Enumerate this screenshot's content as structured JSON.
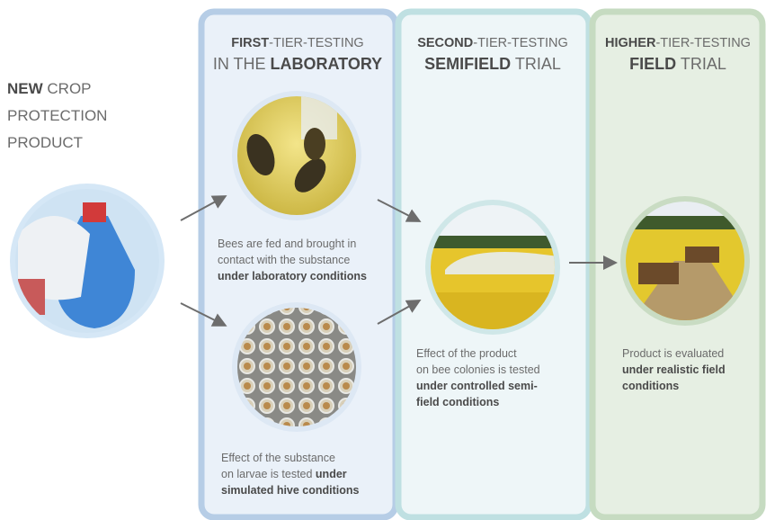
{
  "product": {
    "lines": [
      [
        {
          "text": "NEW",
          "bold": true
        },
        {
          "text": " CROP",
          "bold": false
        }
      ],
      [
        {
          "text": "PROTECTION",
          "bold": false
        }
      ],
      [
        {
          "text": "PRODUCT",
          "bold": false
        }
      ]
    ]
  },
  "stages": [
    {
      "heading": [
        [
          {
            "text": "FIRST",
            "bold": true
          },
          {
            "text": "-TIER-TESTING",
            "bold": false
          }
        ],
        [
          {
            "text": "IN THE ",
            "bold": false
          },
          {
            "text": "LABORATORY",
            "bold": true
          }
        ]
      ],
      "tests": [
        {
          "description": [
            [
              {
                "text": "Bees are fed and brought in",
                "bold": false
              }
            ],
            [
              {
                "text": "contact with the substance",
                "bold": false
              }
            ],
            [
              {
                "text": "under laboratory conditions",
                "bold": true
              }
            ]
          ]
        },
        {
          "description": [
            [
              {
                "text": "Effect of the substance",
                "bold": false
              }
            ],
            [
              {
                "text": "on larvae is tested ",
                "bold": false
              },
              {
                "text": "under",
                "bold": true
              }
            ],
            [
              {
                "text": "simulated hive conditions",
                "bold": true
              }
            ]
          ]
        }
      ]
    },
    {
      "heading": [
        [
          {
            "text": "SECOND",
            "bold": true
          },
          {
            "text": "-TIER-TESTING",
            "bold": false
          }
        ],
        [
          {
            "text": "SEMIFIELD",
            "bold": true
          },
          {
            "text": " TRIAL",
            "bold": false
          }
        ]
      ],
      "tests": [
        {
          "description": [
            [
              {
                "text": "Effect of the product",
                "bold": false
              }
            ],
            [
              {
                "text": "on bee colonies is tested",
                "bold": false
              }
            ],
            [
              {
                "text": "under controlled semi-",
                "bold": true
              }
            ],
            [
              {
                "text": "field conditions",
                "bold": true
              }
            ]
          ]
        }
      ]
    },
    {
      "heading": [
        [
          {
            "text": "HIGHER",
            "bold": true
          },
          {
            "text": "-TIER-TESTING",
            "bold": false
          }
        ],
        [
          {
            "text": "FIELD",
            "bold": true
          },
          {
            "text": " TRIAL",
            "bold": false
          }
        ]
      ],
      "tests": [
        {
          "description": [
            [
              {
                "text": "Product is evaluated",
                "bold": false
              }
            ],
            [
              {
                "text": "under realistic field",
                "bold": true
              }
            ],
            [
              {
                "text": "conditions",
                "bold": true
              }
            ]
          ]
        }
      ]
    }
  ]
}
